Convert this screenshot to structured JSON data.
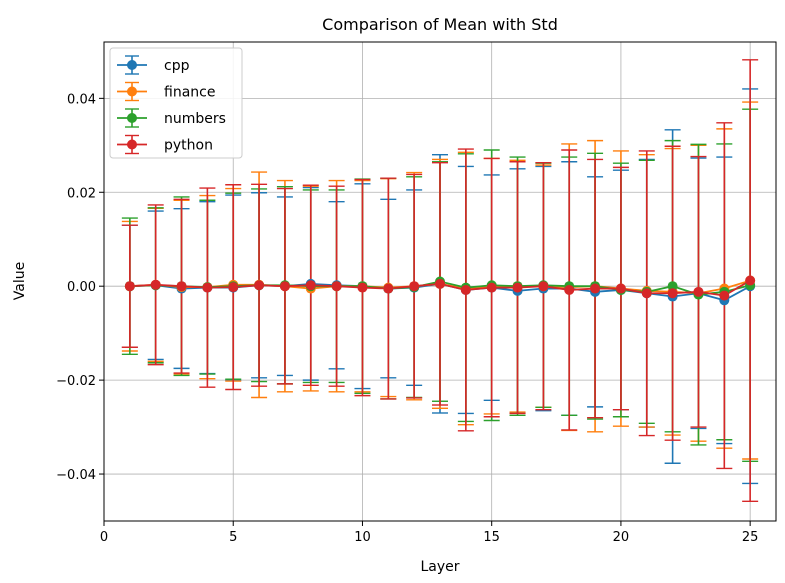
{
  "chart_data": {
    "type": "errorbar",
    "title": "Comparison of Mean with Std",
    "xlabel": "Layer",
    "ylabel": "Value",
    "xlim": [
      0,
      26
    ],
    "ylim": [
      -0.05,
      0.052
    ],
    "xticks": [
      0,
      5,
      10,
      15,
      20,
      25
    ],
    "yticks": [
      -0.04,
      -0.02,
      0.0,
      0.02,
      0.04
    ],
    "xtick_labels": [
      "0",
      "5",
      "10",
      "15",
      "20",
      "25"
    ],
    "ytick_labels": [
      "−0.04",
      "−0.02",
      "0.00",
      "0.02",
      "0.04"
    ],
    "grid": true,
    "legend_position": "top-left",
    "x": [
      1,
      2,
      3,
      4,
      5,
      6,
      7,
      8,
      9,
      10,
      11,
      12,
      13,
      14,
      15,
      16,
      17,
      18,
      19,
      20,
      21,
      22,
      23,
      24,
      25
    ],
    "series": [
      {
        "name": "cpp",
        "color": "#1f77b4",
        "mean": [
          0.0,
          0.0002,
          -0.0005,
          -0.0003,
          -0.0003,
          0.0002,
          0.0,
          0.0005,
          0.0002,
          0.0,
          -0.0005,
          -0.0003,
          0.0005,
          -0.0008,
          -0.0003,
          -0.001,
          -0.0005,
          -0.0005,
          -0.0012,
          -0.0008,
          -0.0015,
          -0.0022,
          -0.0015,
          -0.003,
          0.0
        ],
        "std": [
          0.013,
          0.0158,
          0.017,
          0.0183,
          0.0197,
          0.0197,
          0.019,
          0.0205,
          0.0178,
          0.0218,
          0.019,
          0.0208,
          0.0275,
          0.0263,
          0.024,
          0.026,
          0.026,
          0.027,
          0.0245,
          0.0255,
          0.0285,
          0.0355,
          0.0288,
          0.0305,
          0.042
        ]
      },
      {
        "name": "finance",
        "color": "#ff7f0e",
        "mean": [
          0.0,
          0.0003,
          -0.0002,
          -0.0002,
          0.0003,
          0.0003,
          0.0,
          -0.0005,
          0.0,
          0.0,
          -0.0003,
          0.0,
          0.0005,
          -0.0005,
          0.0,
          0.0,
          0.0,
          -0.0002,
          0.0,
          -0.0005,
          -0.001,
          -0.0012,
          -0.0015,
          -0.0005,
          0.0012
        ],
        "std": [
          0.0138,
          0.0163,
          0.0185,
          0.0195,
          0.0205,
          0.024,
          0.0225,
          0.0218,
          0.0225,
          0.0225,
          0.0232,
          0.0242,
          0.0265,
          0.029,
          0.0272,
          0.0268,
          0.0258,
          0.0305,
          0.031,
          0.0293,
          0.029,
          0.0305,
          0.0315,
          0.034,
          0.038
        ]
      },
      {
        "name": "numbers",
        "color": "#2ca02c",
        "mean": [
          0.0,
          0.0002,
          0.0,
          -0.0002,
          0.0,
          0.0002,
          0.0002,
          0.0,
          0.0,
          0.0,
          -0.0005,
          -0.0002,
          0.001,
          -0.0003,
          0.0002,
          0.0,
          0.0002,
          0.0,
          0.0,
          -0.0008,
          -0.0012,
          0.0,
          -0.0018,
          -0.0012,
          0.0002
        ],
        "std": [
          0.0145,
          0.0165,
          0.019,
          0.0185,
          0.0198,
          0.0205,
          0.021,
          0.0205,
          0.0205,
          0.0228,
          0.0235,
          0.0235,
          0.0255,
          0.0285,
          0.0288,
          0.0275,
          0.026,
          0.0275,
          0.0283,
          0.027,
          0.028,
          0.031,
          0.032,
          0.0315,
          0.0375
        ]
      },
      {
        "name": "python",
        "color": "#d62728",
        "mean": [
          0.0,
          0.0003,
          0.0,
          -0.0003,
          -0.0002,
          0.0002,
          0.0,
          0.0002,
          0.0,
          -0.0003,
          -0.0005,
          0.0,
          0.0005,
          -0.0008,
          -0.0003,
          -0.0003,
          0.0,
          -0.0008,
          -0.0005,
          -0.0005,
          -0.0015,
          -0.0015,
          -0.0012,
          -0.002,
          0.0012
        ],
        "std": [
          0.013,
          0.017,
          0.0185,
          0.0212,
          0.0218,
          0.0215,
          0.0208,
          0.0213,
          0.0213,
          0.023,
          0.0235,
          0.0238,
          0.0258,
          0.03,
          0.0275,
          0.0268,
          0.0263,
          0.0298,
          0.0275,
          0.0258,
          0.0303,
          0.0313,
          0.0288,
          0.0368,
          0.047
        ]
      }
    ]
  }
}
